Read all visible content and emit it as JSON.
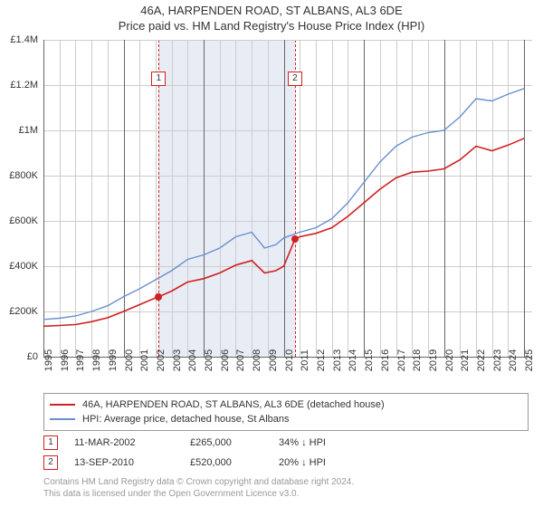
{
  "title": "46A, HARPENDEN ROAD, ST ALBANS, AL3 6DE",
  "subtitle": "Price paid vs. HM Land Registry's House Price Index (HPI)",
  "chart": {
    "type": "line",
    "background_color": "#ffffff",
    "grid_color": "#cccccc",
    "grid_color_bold": "#666666",
    "shade_color": "#e8edf5",
    "shade_border_color": "#d02020",
    "x_years": [
      1995,
      1996,
      1997,
      1998,
      1999,
      2000,
      2001,
      2002,
      2003,
      2004,
      2005,
      2006,
      2007,
      2008,
      2009,
      2010,
      2011,
      2012,
      2013,
      2014,
      2015,
      2016,
      2017,
      2018,
      2019,
      2020,
      2021,
      2022,
      2023,
      2024,
      2025
    ],
    "x_range": [
      1995,
      2025.5
    ],
    "y_ticks": [
      0,
      200000,
      400000,
      600000,
      800000,
      1000000,
      1200000,
      1400000
    ],
    "y_tick_labels": [
      "£0",
      "£200K",
      "£400K",
      "£600K",
      "£800K",
      "£1M",
      "£1.2M",
      "£1.4M"
    ],
    "y_range": [
      0,
      1400000
    ],
    "label_fontsize": 11,
    "shade_x": [
      2002.19,
      2010.7
    ],
    "series": [
      {
        "name": "property",
        "label": "46A, HARPENDEN ROAD, ST ALBANS, AL3 6DE (detached house)",
        "color": "#d02020",
        "line_width": 1.6,
        "x": [
          1995,
          1996,
          1997,
          1998,
          1999,
          2000,
          2001,
          2002,
          2002.19,
          2003,
          2004,
          2005,
          2006,
          2007,
          2008,
          2008.8,
          2009.5,
          2010,
          2010.7,
          2011,
          2012,
          2013,
          2014,
          2015,
          2016,
          2017,
          2018,
          2019,
          2020,
          2021,
          2022,
          2023,
          2024,
          2025
        ],
        "y": [
          135,
          138,
          142,
          155,
          172,
          200,
          230,
          260,
          265,
          290,
          330,
          345,
          370,
          405,
          425,
          370,
          380,
          400,
          520,
          530,
          545,
          570,
          620,
          680,
          740,
          790,
          815,
          820,
          830,
          870,
          930,
          910,
          935,
          965
        ]
      },
      {
        "name": "hpi",
        "label": "HPI: Average price, detached house, St Albans",
        "color": "#6a8fd0",
        "line_width": 1.4,
        "x": [
          1995,
          1996,
          1997,
          1998,
          1999,
          2000,
          2001,
          2002,
          2003,
          2004,
          2005,
          2006,
          2007,
          2008,
          2008.8,
          2009.5,
          2010,
          2011,
          2012,
          2013,
          2014,
          2015,
          2016,
          2017,
          2018,
          2019,
          2020,
          2021,
          2022,
          2023,
          2024,
          2025
        ],
        "y": [
          165,
          170,
          180,
          200,
          225,
          265,
          300,
          340,
          380,
          430,
          450,
          480,
          530,
          550,
          480,
          495,
          525,
          550,
          570,
          610,
          680,
          770,
          860,
          930,
          970,
          990,
          1000,
          1060,
          1140,
          1130,
          1160,
          1185
        ]
      }
    ],
    "sale_markers": [
      {
        "n": "1",
        "x": 2002.19,
        "y": 265,
        "label_y": 1260
      },
      {
        "n": "2",
        "x": 2010.7,
        "y": 520,
        "label_y": 1260
      }
    ]
  },
  "legend": {
    "rows": [
      {
        "color": "#d02020",
        "text": "46A, HARPENDEN ROAD, ST ALBANS, AL3 6DE (detached house)"
      },
      {
        "color": "#6a8fd0",
        "text": "HPI: Average price, detached house, St Albans"
      }
    ]
  },
  "sales": [
    {
      "n": "1",
      "border_color": "#d02020",
      "date": "11-MAR-2002",
      "price": "£265,000",
      "diff": "34% ↓ HPI"
    },
    {
      "n": "2",
      "border_color": "#d02020",
      "date": "13-SEP-2010",
      "price": "£520,000",
      "diff": "20% ↓ HPI"
    }
  ],
  "footer": {
    "line1": "Contains HM Land Registry data © Crown copyright and database right 2024.",
    "line2": "This data is licensed under the Open Government Licence v3.0."
  }
}
